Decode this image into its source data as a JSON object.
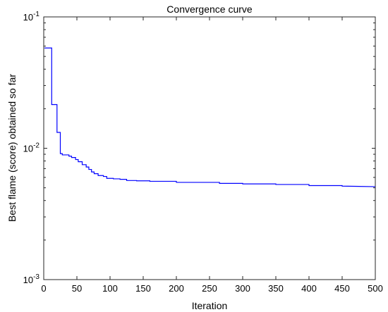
{
  "chart_data": {
    "type": "line",
    "title": "Convergence curve",
    "xlabel": "Iteration",
    "ylabel": "Best flame (score) obtained so far",
    "x_ticks": [
      0,
      50,
      100,
      150,
      200,
      250,
      300,
      350,
      400,
      450,
      500
    ],
    "y_ticks": [
      {
        "value": 0.001,
        "base": "10",
        "exp": "-3"
      },
      {
        "value": 0.01,
        "base": "10",
        "exp": "-2"
      },
      {
        "value": 0.1,
        "base": "10",
        "exp": "-1"
      }
    ],
    "xlim": [
      0,
      500
    ],
    "ylim": [
      0.001,
      0.1
    ],
    "y_scale": "log",
    "grid": false,
    "line_color": "#0000ff",
    "series": [
      {
        "x": [
          1,
          12,
          12,
          20,
          20,
          25,
          25,
          28,
          28,
          38,
          38,
          42,
          42,
          48,
          48,
          52,
          52,
          58,
          58,
          64,
          64,
          68,
          68,
          72,
          72,
          76,
          76,
          82,
          82,
          90,
          90,
          95,
          95,
          105,
          105,
          115,
          115,
          125,
          125,
          140,
          140,
          160,
          160,
          200,
          200,
          265,
          265,
          300,
          300,
          350,
          350,
          400,
          400,
          450,
          450,
          500
        ],
        "y": [
          0.058,
          0.058,
          0.0215,
          0.0215,
          0.0132,
          0.0132,
          0.0091,
          0.0091,
          0.0089,
          0.0089,
          0.0087,
          0.0087,
          0.0085,
          0.0085,
          0.0082,
          0.0082,
          0.0079,
          0.0079,
          0.0075,
          0.0075,
          0.0072,
          0.0072,
          0.0069,
          0.0069,
          0.0066,
          0.0066,
          0.0064,
          0.0064,
          0.0062,
          0.0062,
          0.0061,
          0.0061,
          0.0059,
          0.0059,
          0.00585,
          0.00585,
          0.0058,
          0.0058,
          0.00568,
          0.00568,
          0.00565,
          0.00565,
          0.0056,
          0.0056,
          0.0055,
          0.0055,
          0.0054,
          0.0054,
          0.00535,
          0.00535,
          0.0053,
          0.0053,
          0.0052,
          0.0052,
          0.00515,
          0.0051
        ]
      }
    ]
  }
}
